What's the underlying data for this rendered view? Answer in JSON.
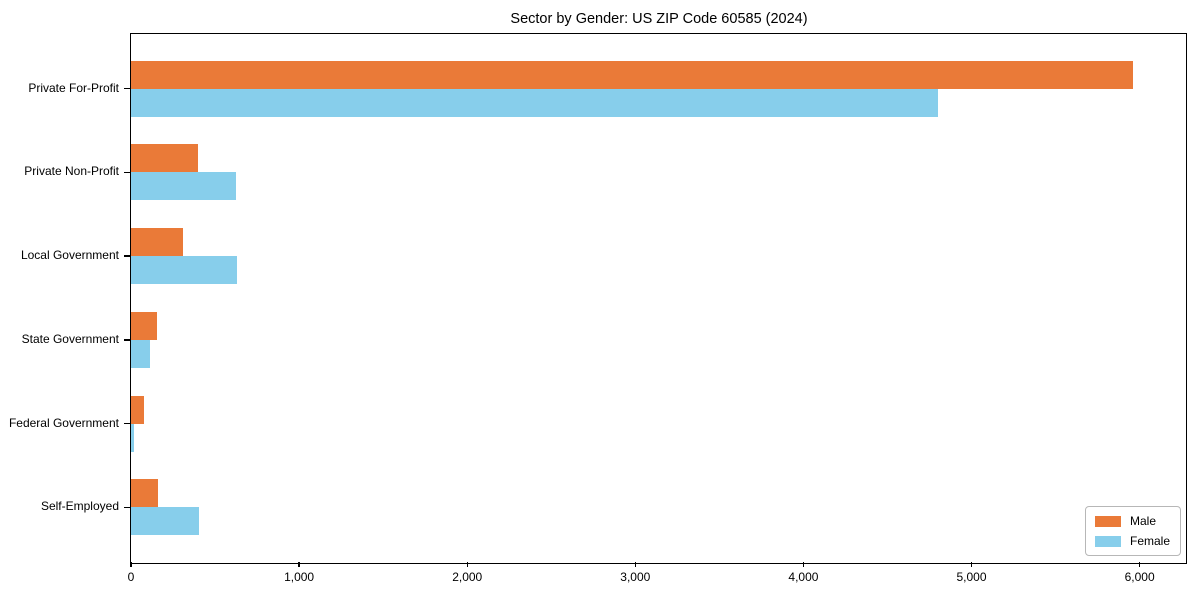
{
  "chart_data": {
    "type": "bar",
    "orientation": "horizontal",
    "title": "Sector by Gender: US ZIP Code 60585 (2024)",
    "categories": [
      "Private For-Profit",
      "Private Non-Profit",
      "Local Government",
      "State Government",
      "Federal Government",
      "Self-Employed"
    ],
    "series": [
      {
        "name": "Male",
        "color": "#EA7A38",
        "values": [
          5960,
          400,
          310,
          155,
          78,
          160
        ]
      },
      {
        "name": "Female",
        "color": "#87CEEB",
        "values": [
          4800,
          625,
          630,
          112,
          15,
          405
        ]
      }
    ],
    "xlabel": "",
    "ylabel": "",
    "xlim": [
      0,
      6270
    ],
    "xticks": [
      0,
      1000,
      2000,
      3000,
      4000,
      5000,
      6000
    ],
    "xtick_labels": [
      "0",
      "1,000",
      "2,000",
      "3,000",
      "4,000",
      "5,000",
      "6,000"
    ],
    "grid": false,
    "legend_position": "lower right",
    "axis_color": "#000000"
  }
}
